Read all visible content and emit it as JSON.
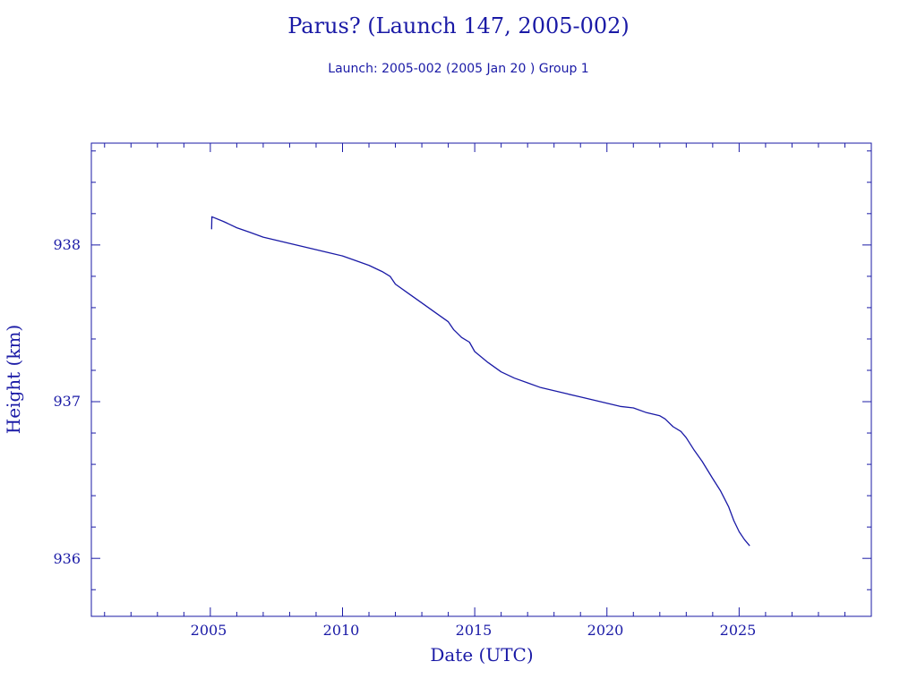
{
  "chart_data": {
    "type": "line",
    "title": "Parus? (Launch 147, 2005-002)",
    "subtitle": "Launch: 2005-002  (2005 Jan 20 )  Group 1",
    "xlabel": "Date (UTC)",
    "ylabel": "Height (km)",
    "xlim": [
      2000.5,
      2030
    ],
    "ylim": [
      935.63,
      938.65
    ],
    "x_tick_labels": [
      "2005",
      "2010",
      "2015",
      "2020",
      "2025"
    ],
    "y_tick_labels": [
      "936",
      "937",
      "938"
    ],
    "grid": false,
    "colors": {
      "axis": "#1a1aa6",
      "line": "#1a1aa6",
      "background": "#ffffff"
    },
    "series": [
      {
        "x": [
          2005.05,
          2005.06,
          2005.5,
          2006,
          2006.5,
          2007,
          2007.5,
          2008,
          2008.5,
          2009,
          2009.5,
          2010,
          2010.5,
          2011,
          2011.5,
          2011.8,
          2012,
          2012.5,
          2013,
          2013.5,
          2014,
          2014.2,
          2014.5,
          2014.8,
          2015,
          2015.5,
          2016,
          2016.5,
          2017,
          2017.5,
          2018,
          2018.5,
          2019,
          2019.5,
          2020,
          2020.5,
          2021,
          2021.5,
          2022,
          2022.2,
          2022.5,
          2022.8,
          2023,
          2023.3,
          2023.6,
          2024,
          2024.3,
          2024.6,
          2024.8,
          2025,
          2025.2,
          2025.4
        ],
        "y": [
          938.1,
          938.18,
          938.15,
          938.11,
          938.08,
          938.05,
          938.03,
          938.01,
          937.99,
          937.97,
          937.95,
          937.93,
          937.9,
          937.87,
          937.83,
          937.8,
          937.75,
          937.69,
          937.63,
          937.57,
          937.51,
          937.46,
          937.41,
          937.38,
          937.32,
          937.25,
          937.19,
          937.15,
          937.12,
          937.09,
          937.07,
          937.05,
          937.03,
          937.01,
          936.99,
          936.97,
          936.96,
          936.93,
          936.91,
          936.89,
          936.84,
          936.81,
          936.77,
          936.69,
          936.62,
          936.51,
          936.43,
          936.33,
          936.24,
          936.17,
          936.12,
          936.08
        ]
      }
    ]
  }
}
